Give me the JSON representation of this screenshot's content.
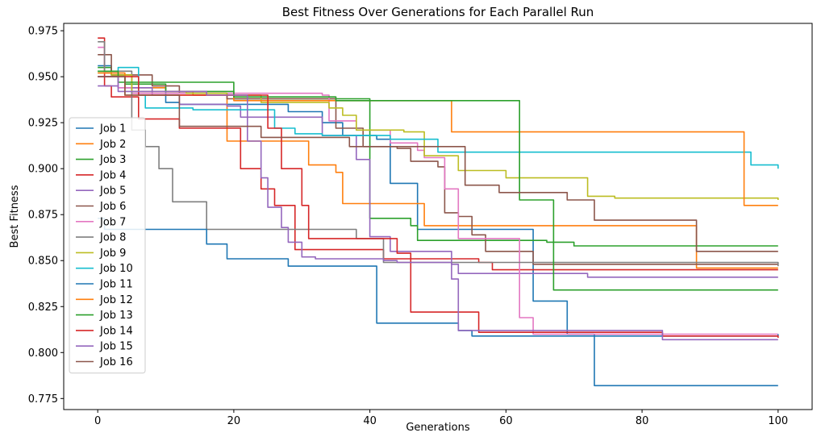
{
  "chart_data": {
    "type": "line",
    "title": "Best Fitness Over Generations for Each Parallel Run",
    "xlabel": "Generations",
    "ylabel": "Best Fitness",
    "xlim": [
      -5,
      105
    ],
    "ylim": [
      0.769,
      0.979
    ],
    "xticks": [
      0,
      20,
      40,
      60,
      80,
      100
    ],
    "yticks": [
      0.775,
      0.8,
      0.825,
      0.85,
      0.875,
      0.9,
      0.925,
      0.95,
      0.975
    ],
    "ytick_labels": [
      "0.775",
      "0.800",
      "0.825",
      "0.850",
      "0.875",
      "0.900",
      "0.925",
      "0.950",
      "0.975"
    ],
    "xtick_labels": [
      "0",
      "20",
      "40",
      "60",
      "80",
      "100"
    ],
    "legend_position": "center-left",
    "series": [
      {
        "name": "Job 1",
        "color": "#1f77b4",
        "points": [
          [
            0,
            0.956
          ],
          [
            2,
            0.951
          ],
          [
            4,
            0.944
          ],
          [
            10,
            0.936
          ],
          [
            12,
            0.935
          ],
          [
            28,
            0.931
          ],
          [
            33,
            0.925
          ],
          [
            36,
            0.918
          ],
          [
            41,
            0.916
          ],
          [
            43,
            0.892
          ],
          [
            47,
            0.867
          ],
          [
            64,
            0.828
          ],
          [
            66,
            0.828
          ],
          [
            68,
            0.828
          ],
          [
            69,
            0.81
          ],
          [
            73,
            0.782
          ],
          [
            100,
            0.782
          ]
        ]
      },
      {
        "name": "Job 2",
        "color": "#ff7f0e",
        "points": [
          [
            0,
            0.953
          ],
          [
            2,
            0.951
          ],
          [
            5,
            0.944
          ],
          [
            10,
            0.942
          ],
          [
            14,
            0.94
          ],
          [
            17,
            0.94
          ],
          [
            19,
            0.915
          ],
          [
            28,
            0.915
          ],
          [
            31,
            0.902
          ],
          [
            35,
            0.898
          ],
          [
            36,
            0.881
          ],
          [
            48,
            0.869
          ],
          [
            87,
            0.869
          ],
          [
            88,
            0.846
          ],
          [
            100,
            0.846
          ]
        ]
      },
      {
        "name": "Job 3",
        "color": "#2ca02c",
        "points": [
          [
            0,
            0.955
          ],
          [
            2,
            0.951
          ],
          [
            4,
            0.946
          ],
          [
            6,
            0.946
          ],
          [
            10,
            0.942
          ],
          [
            20,
            0.938
          ],
          [
            37,
            0.938
          ],
          [
            40,
            0.873
          ],
          [
            45,
            0.873
          ],
          [
            46,
            0.869
          ],
          [
            47,
            0.861
          ],
          [
            60,
            0.861
          ],
          [
            66,
            0.86
          ],
          [
            70,
            0.858
          ],
          [
            75,
            0.858
          ],
          [
            100,
            0.858
          ]
        ]
      },
      {
        "name": "Job 4",
        "color": "#d62728",
        "points": [
          [
            0,
            0.971
          ],
          [
            1,
            0.945
          ],
          [
            2,
            0.939
          ],
          [
            5,
            0.939
          ],
          [
            6,
            0.927
          ],
          [
            11,
            0.927
          ],
          [
            12,
            0.922
          ],
          [
            20,
            0.922
          ],
          [
            21,
            0.9
          ],
          [
            24,
            0.889
          ],
          [
            26,
            0.88
          ],
          [
            29,
            0.856
          ],
          [
            41,
            0.856
          ],
          [
            42,
            0.851
          ],
          [
            56,
            0.849
          ],
          [
            58,
            0.845
          ],
          [
            100,
            0.845
          ]
        ]
      },
      {
        "name": "Job 5",
        "color": "#9467bd",
        "points": [
          [
            0,
            0.945
          ],
          [
            3,
            0.944
          ],
          [
            8,
            0.94
          ],
          [
            12,
            0.935
          ],
          [
            19,
            0.934
          ],
          [
            21,
            0.928
          ],
          [
            33,
            0.918
          ],
          [
            38,
            0.905
          ],
          [
            40,
            0.863
          ],
          [
            43,
            0.855
          ],
          [
            52,
            0.848
          ],
          [
            53,
            0.843
          ],
          [
            72,
            0.841
          ],
          [
            100,
            0.841
          ]
        ]
      },
      {
        "name": "Job 6",
        "color": "#8c564b",
        "points": [
          [
            0,
            0.962
          ],
          [
            2,
            0.951
          ],
          [
            6,
            0.951
          ],
          [
            8,
            0.945
          ],
          [
            12,
            0.941
          ],
          [
            19,
            0.938
          ],
          [
            35,
            0.922
          ],
          [
            39,
            0.912
          ],
          [
            44,
            0.911
          ],
          [
            46,
            0.904
          ],
          [
            50,
            0.901
          ],
          [
            51,
            0.876
          ],
          [
            53,
            0.874
          ],
          [
            55,
            0.864
          ],
          [
            57,
            0.855
          ],
          [
            64,
            0.848
          ],
          [
            100,
            0.848
          ]
        ]
      },
      {
        "name": "Job 7",
        "color": "#e377c2",
        "points": [
          [
            0,
            0.966
          ],
          [
            1,
            0.952
          ],
          [
            3,
            0.944
          ],
          [
            5,
            0.941
          ],
          [
            33,
            0.94
          ],
          [
            34,
            0.926
          ],
          [
            38,
            0.921
          ],
          [
            43,
            0.914
          ],
          [
            47,
            0.91
          ],
          [
            48,
            0.906
          ],
          [
            51,
            0.889
          ],
          [
            53,
            0.862
          ],
          [
            61,
            0.862
          ],
          [
            62,
            0.819
          ],
          [
            64,
            0.81
          ],
          [
            100,
            0.81
          ]
        ]
      },
      {
        "name": "Job 8",
        "color": "#7f7f7f",
        "points": [
          [
            0,
            0.969
          ],
          [
            1,
            0.953
          ],
          [
            2,
            0.953
          ],
          [
            5,
            0.921
          ],
          [
            7,
            0.912
          ],
          [
            9,
            0.9
          ],
          [
            11,
            0.882
          ],
          [
            15,
            0.882
          ],
          [
            16,
            0.867
          ],
          [
            32,
            0.867
          ],
          [
            38,
            0.862
          ],
          [
            42,
            0.849
          ],
          [
            96,
            0.849
          ],
          [
            100,
            0.847
          ]
        ]
      },
      {
        "name": "Job 9",
        "color": "#bcbd22",
        "points": [
          [
            0,
            0.953
          ],
          [
            2,
            0.951
          ],
          [
            5,
            0.942
          ],
          [
            13,
            0.941
          ],
          [
            19,
            0.94
          ],
          [
            24,
            0.936
          ],
          [
            34,
            0.933
          ],
          [
            36,
            0.929
          ],
          [
            38,
            0.921
          ],
          [
            45,
            0.92
          ],
          [
            48,
            0.907
          ],
          [
            51,
            0.907
          ],
          [
            53,
            0.899
          ],
          [
            59,
            0.899
          ],
          [
            60,
            0.895
          ],
          [
            71,
            0.895
          ],
          [
            72,
            0.885
          ],
          [
            76,
            0.884
          ],
          [
            100,
            0.883
          ]
        ]
      },
      {
        "name": "Job 10",
        "color": "#17becf",
        "points": [
          [
            0,
            0.953
          ],
          [
            3,
            0.955
          ],
          [
            6,
            0.94
          ],
          [
            7,
            0.933
          ],
          [
            14,
            0.932
          ],
          [
            26,
            0.922
          ],
          [
            29,
            0.919
          ],
          [
            33,
            0.918
          ],
          [
            43,
            0.916
          ],
          [
            50,
            0.909
          ],
          [
            93,
            0.909
          ],
          [
            96,
            0.902
          ],
          [
            99,
            0.902
          ],
          [
            100,
            0.9
          ]
        ]
      },
      {
        "name": "Job 11",
        "color": "#1f77b4",
        "points": [
          [
            0,
            0.873
          ],
          [
            1,
            0.867
          ],
          [
            15,
            0.867
          ],
          [
            16,
            0.859
          ],
          [
            19,
            0.851
          ],
          [
            26,
            0.851
          ],
          [
            28,
            0.847
          ],
          [
            37,
            0.847
          ],
          [
            38,
            0.847
          ],
          [
            40,
            0.847
          ],
          [
            41,
            0.816
          ],
          [
            51,
            0.816
          ],
          [
            53,
            0.812
          ],
          [
            55,
            0.809
          ],
          [
            100,
            0.81
          ]
        ]
      },
      {
        "name": "Job 12",
        "color": "#ff7f0e",
        "points": [
          [
            0,
            0.952
          ],
          [
            4,
            0.94
          ],
          [
            20,
            0.937
          ],
          [
            51,
            0.937
          ],
          [
            52,
            0.92
          ],
          [
            94,
            0.92
          ],
          [
            95,
            0.88
          ],
          [
            100,
            0.88
          ]
        ]
      },
      {
        "name": "Job 13",
        "color": "#2ca02c",
        "points": [
          [
            0,
            0.953
          ],
          [
            3,
            0.947
          ],
          [
            20,
            0.939
          ],
          [
            35,
            0.937
          ],
          [
            61,
            0.937
          ],
          [
            62,
            0.883
          ],
          [
            66,
            0.883
          ],
          [
            67,
            0.834
          ],
          [
            100,
            0.834
          ]
        ]
      },
      {
        "name": "Job 14",
        "color": "#d62728",
        "points": [
          [
            0,
            0.95
          ],
          [
            6,
            0.94
          ],
          [
            25,
            0.922
          ],
          [
            27,
            0.9
          ],
          [
            30,
            0.88
          ],
          [
            31,
            0.862
          ],
          [
            40,
            0.862
          ],
          [
            44,
            0.854
          ],
          [
            46,
            0.822
          ],
          [
            55,
            0.822
          ],
          [
            56,
            0.811
          ],
          [
            82,
            0.811
          ],
          [
            83,
            0.809
          ],
          [
            100,
            0.808
          ]
        ]
      },
      {
        "name": "Job 15",
        "color": "#9467bd",
        "points": [
          [
            0,
            0.95
          ],
          [
            3,
            0.942
          ],
          [
            16,
            0.94
          ],
          [
            20,
            0.94
          ],
          [
            22,
            0.915
          ],
          [
            24,
            0.895
          ],
          [
            25,
            0.879
          ],
          [
            27,
            0.868
          ],
          [
            28,
            0.86
          ],
          [
            30,
            0.852
          ],
          [
            32,
            0.851
          ],
          [
            42,
            0.85
          ],
          [
            44,
            0.849
          ],
          [
            51,
            0.849
          ],
          [
            52,
            0.84
          ],
          [
            53,
            0.812
          ],
          [
            60,
            0.812
          ],
          [
            82,
            0.812
          ],
          [
            83,
            0.807
          ],
          [
            100,
            0.807
          ]
        ]
      },
      {
        "name": "Job 16",
        "color": "#8c564b",
        "points": [
          [
            0,
            0.95
          ],
          [
            4,
            0.94
          ],
          [
            9,
            0.94
          ],
          [
            12,
            0.923
          ],
          [
            24,
            0.917
          ],
          [
            36,
            0.917
          ],
          [
            37,
            0.912
          ],
          [
            41,
            0.912
          ],
          [
            47,
            0.912
          ],
          [
            52,
            0.912
          ],
          [
            54,
            0.891
          ],
          [
            57,
            0.891
          ],
          [
            59,
            0.887
          ],
          [
            61,
            0.887
          ],
          [
            69,
            0.883
          ],
          [
            73,
            0.872
          ],
          [
            86,
            0.872
          ],
          [
            88,
            0.855
          ],
          [
            100,
            0.855
          ]
        ]
      }
    ]
  }
}
